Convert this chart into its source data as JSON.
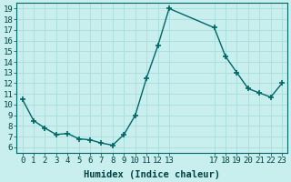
{
  "x": [
    0,
    1,
    2,
    3,
    4,
    5,
    6,
    7,
    8,
    9,
    10,
    11,
    12,
    13,
    17,
    18,
    19,
    20,
    21,
    22,
    23
  ],
  "y": [
    10.5,
    8.5,
    7.8,
    7.2,
    7.3,
    6.8,
    6.7,
    6.4,
    6.2,
    7.2,
    9.0,
    12.5,
    15.5,
    19.0,
    17.2,
    14.5,
    13.0,
    11.5,
    11.1,
    10.7,
    12.0
  ],
  "line_color": "#006666",
  "marker": "+",
  "marker_size": 4,
  "marker_linewidth": 1.2,
  "line_width": 1.0,
  "bg_color": "#c8eeee",
  "grid_color": "#aadddd",
  "xlabel": "Humidex (Indice chaleur)",
  "xlim": [
    -0.5,
    23.5
  ],
  "ylim": [
    5.8,
    19.5
  ],
  "yticks": [
    6,
    7,
    8,
    9,
    10,
    11,
    12,
    13,
    14,
    15,
    16,
    17,
    18,
    19
  ],
  "xticks": [
    0,
    1,
    2,
    3,
    4,
    5,
    6,
    7,
    8,
    9,
    10,
    11,
    12,
    13,
    17,
    18,
    19,
    20,
    21,
    22,
    23
  ],
  "xtick_labels": [
    "0",
    "1",
    "2",
    "3",
    "4",
    "5",
    "6",
    "7",
    "8",
    "9",
    "10",
    "11",
    "12",
    "13",
    "17",
    "18",
    "19",
    "20",
    "21",
    "22",
    "23"
  ],
  "tick_color": "#004444",
  "label_color": "#004444",
  "font_size": 6.5,
  "label_font_size": 7.5,
  "spine_color": "#006666"
}
